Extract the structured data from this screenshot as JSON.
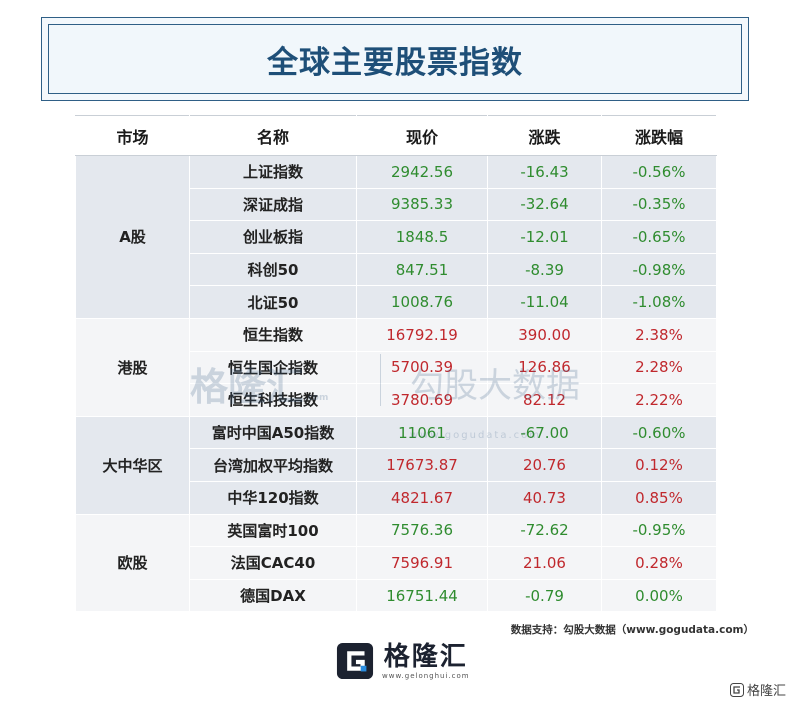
{
  "title": "全球主要股票指数",
  "headers": [
    "市场",
    "名称",
    "现价",
    "涨跌",
    "涨跌幅"
  ],
  "groups": [
    {
      "market": "A股",
      "rows": [
        {
          "name": "上证指数",
          "price": "2942.56",
          "change": "-16.43",
          "pct": "-0.56%"
        },
        {
          "name": "深证成指",
          "price": "9385.33",
          "change": "-32.64",
          "pct": "-0.35%"
        },
        {
          "name": "创业板指",
          "price": "1848.5",
          "change": "-12.01",
          "pct": "-0.65%"
        },
        {
          "name": "科创50",
          "price": "847.51",
          "change": "-8.39",
          "pct": "-0.98%"
        },
        {
          "name": "北证50",
          "price": "1008.76",
          "change": "-11.04",
          "pct": "-1.08%"
        }
      ]
    },
    {
      "market": "港股",
      "rows": [
        {
          "name": "恒生指数",
          "price": "16792.19",
          "change": "390.00",
          "pct": "2.38%"
        },
        {
          "name": "恒生国企指数",
          "price": "5700.39",
          "change": "126.86",
          "pct": "2.28%"
        },
        {
          "name": "恒生科技指数",
          "price": "3780.69",
          "change": "82.12",
          "pct": "2.22%"
        }
      ]
    },
    {
      "market": "大中华区",
      "rows": [
        {
          "name": "富时中国A50指数",
          "price": "11061",
          "change": "-67.00",
          "pct": "-0.60%"
        },
        {
          "name": "台湾加权平均指数",
          "price": "17673.87",
          "change": "20.76",
          "pct": "0.12%"
        },
        {
          "name": "中华120指数",
          "price": "4821.67",
          "change": "40.73",
          "pct": "0.85%"
        }
      ]
    },
    {
      "market": "欧股",
      "rows": [
        {
          "name": "英国富时100",
          "price": "7576.36",
          "change": "-72.62",
          "pct": "-0.95%"
        },
        {
          "name": "法国CAC40",
          "price": "7596.91",
          "change": "21.06",
          "pct": "0.28%"
        },
        {
          "name": "德国DAX",
          "price": "16751.44",
          "change": "-0.79",
          "pct": "0.00%"
        }
      ]
    }
  ],
  "colors": {
    "up": "#c0282d",
    "down": "#2f8c2f",
    "title": "#1e4f78"
  },
  "watermark": {
    "left": "格隆汇",
    "left_url": ".com",
    "right": "勾股大数据",
    "right_url": "www.gogudata.com"
  },
  "source_note": "数据支持：勾股大数据（www.gogudata.com）",
  "logo": {
    "text": "格隆汇",
    "url": "www.gelonghui.com"
  },
  "corner_mark": "格隆汇"
}
